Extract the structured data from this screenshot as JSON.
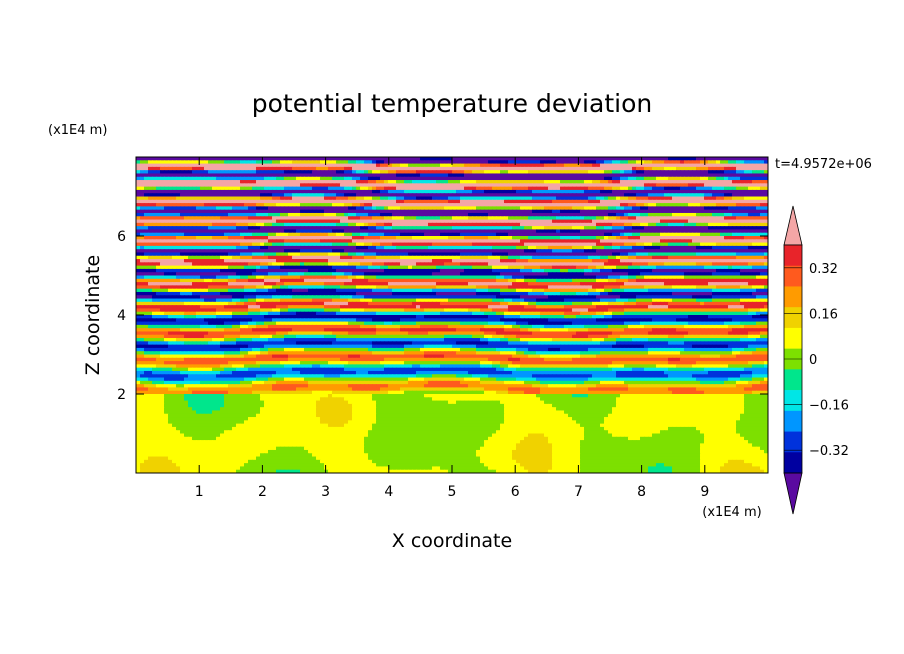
{
  "chart_data": {
    "type": "heatmap",
    "title": "potential temperature deviation",
    "xlabel": "X coordinate",
    "ylabel": "Z coordinate",
    "x_unit": "(x1E4 m)",
    "y_unit": "(x1E4 m)",
    "time_label": "t=4.9572e+06",
    "xlim": [
      0,
      10
    ],
    "ylim": [
      0,
      8
    ],
    "x_ticks": [
      "1",
      "2",
      "3",
      "4",
      "5",
      "6",
      "7",
      "8",
      "9"
    ],
    "y_ticks": [
      "2",
      "4",
      "6"
    ],
    "colorbar": {
      "levels": [
        -0.4,
        -0.32,
        -0.24,
        -0.16,
        -0.08,
        0,
        0.08,
        0.16,
        0.24,
        0.32,
        0.4
      ],
      "tick_labels": [
        "0.32",
        "0.16",
        "0",
        "−0.16",
        "−0.32"
      ],
      "colors_high_to_low": [
        "#f4a6a6",
        "#e8242a",
        "#ff5a1e",
        "#ff9b00",
        "#f0d200",
        "#ffff00",
        "#7de000",
        "#00e68c",
        "#00e6e6",
        "#0096ff",
        "#0032dc",
        "#0000a0",
        "#5a0aa0"
      ]
    },
    "field_regions": {
      "lower_layer_z": [
        0,
        2
      ],
      "lower_layer_values": "near 0 (green / light green)",
      "upper_layer_z": [
        2,
        8
      ],
      "upper_layer_values": "horizontally layered bands alternating between −0.4 (purple) and +0.4 (pink)"
    }
  }
}
